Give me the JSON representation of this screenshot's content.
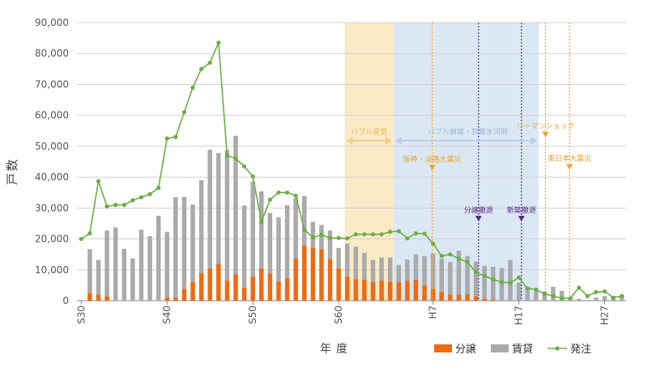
{
  "chart_data": {
    "type": "bar",
    "ylabel": "戸数",
    "xlabel": "年度",
    "ylim": [
      0,
      90000
    ],
    "y_ticks": [
      "0",
      "10,000",
      "20,000",
      "30,000",
      "40,000",
      "50,000",
      "60,000",
      "70,000",
      "80,000",
      "90,000"
    ],
    "x_tick_labels": [
      {
        "year": 30,
        "label": "S30"
      },
      {
        "year": 40,
        "label": "S40"
      },
      {
        "year": 50,
        "label": "S50"
      },
      {
        "year": 60,
        "label": "S60"
      },
      {
        "year": 71,
        "label": "H7"
      },
      {
        "year": 81,
        "label": "H17"
      },
      {
        "year": 91,
        "label": "H27"
      }
    ],
    "x_range": [
      30,
      93
    ],
    "stacked": true,
    "x": [
      30,
      31,
      32,
      33,
      34,
      35,
      36,
      37,
      38,
      39,
      40,
      41,
      42,
      43,
      44,
      45,
      46,
      47,
      48,
      49,
      50,
      51,
      52,
      53,
      54,
      55,
      56,
      57,
      58,
      59,
      60,
      61,
      62,
      63,
      64,
      65,
      66,
      67,
      68,
      69,
      70,
      71,
      72,
      73,
      74,
      75,
      76,
      77,
      78,
      79,
      80,
      81,
      82,
      83,
      84,
      85,
      86,
      87,
      88,
      89,
      90,
      91,
      92,
      93
    ],
    "series": [
      {
        "name": "分譲",
        "color": "#ee6b12",
        "values": [
          0,
          2500,
          2000,
          1500,
          0,
          0,
          0,
          0,
          0,
          0,
          1000,
          1000,
          3800,
          6000,
          9000,
          10500,
          12000,
          6500,
          8500,
          4200,
          7800,
          10500,
          8800,
          6200,
          7300,
          13500,
          17800,
          17200,
          16800,
          13500,
          10500,
          7800,
          7000,
          6800,
          6000,
          6500,
          6200,
          6000,
          6500,
          6800,
          5000,
          3800,
          2800,
          2000,
          2000,
          2200,
          1500,
          600,
          400,
          0,
          0,
          0,
          0,
          0,
          0,
          0,
          0,
          0,
          0,
          0,
          0,
          0,
          0,
          0
        ]
      },
      {
        "name": "賃貸",
        "color": "#aaaaaa",
        "values": [
          0,
          14200,
          11200,
          21200,
          23700,
          16800,
          13700,
          23000,
          20900,
          27500,
          21300,
          32500,
          29800,
          25100,
          30000,
          38400,
          35800,
          42300,
          44900,
          26600,
          30800,
          24900,
          19600,
          20800,
          23600,
          19800,
          16100,
          8300,
          7700,
          9200,
          6600,
          10700,
          10500,
          8700,
          7200,
          7500,
          7800,
          5600,
          6800,
          8200,
          9400,
          11500,
          10800,
          10500,
          14200,
          12300,
          11200,
          10700,
          10600,
          10600,
          13200,
          5800,
          4500,
          3000,
          3000,
          4500,
          3200,
          900,
          600,
          200,
          1000,
          1500,
          1500,
          1800
        ]
      },
      {
        "name": "発注",
        "type": "line",
        "color": "#6cae44",
        "values": [
          20000,
          21800,
          38700,
          30500,
          31000,
          31000,
          32500,
          33500,
          34500,
          36500,
          52500,
          53000,
          61000,
          69000,
          75000,
          77000,
          83500,
          47000,
          46000,
          43500,
          40200,
          25500,
          32700,
          35000,
          35000,
          34000,
          23000,
          20500,
          21300,
          20300,
          20300,
          20200,
          21500,
          21500,
          21500,
          21500,
          22300,
          22500,
          20200,
          21800,
          21700,
          18500,
          14500,
          15000,
          13600,
          12500,
          9200,
          8000,
          6900,
          6000,
          5800,
          7500,
          4000,
          3600,
          2200,
          1500,
          800,
          800,
          4200,
          1500,
          2800,
          3000,
          1000,
          1500
        ]
      }
    ],
    "annotations": {
      "bubble_boom": {
        "label": "バブル景気",
        "from": 60.7,
        "to": 66.4,
        "color": "#fbeac7"
      },
      "bubble_collapse": {
        "label": "バブル崩壊・就職氷河期",
        "from": 66.4,
        "to": 83.3,
        "color": "#dbe8f4"
      },
      "events": [
        {
          "year": 70.9,
          "label": "阪神・淡路大震災",
          "color": "#f5a623",
          "style": "dotted"
        },
        {
          "year": 76.3,
          "label": "分譲撤退",
          "color": "#5b2a86",
          "style": "dotted"
        },
        {
          "year": 81.3,
          "label": "新築撤退",
          "color": "#5b2a86",
          "style": "dotted"
        },
        {
          "year": 84.1,
          "label": "リーマンショック",
          "color": "#f5a623",
          "style": "dotted"
        },
        {
          "year": 86.9,
          "label": "東日本大震災",
          "color": "#f5a623",
          "style": "dotted"
        }
      ]
    },
    "legend": [
      {
        "label": "分譲",
        "color": "#ee6b12",
        "type": "bar"
      },
      {
        "label": "賃貸",
        "color": "#aaaaaa",
        "type": "bar"
      },
      {
        "label": "発注",
        "color": "#6cae44",
        "type": "line"
      }
    ],
    "grid": true,
    "legend_position": "bottom-right"
  }
}
